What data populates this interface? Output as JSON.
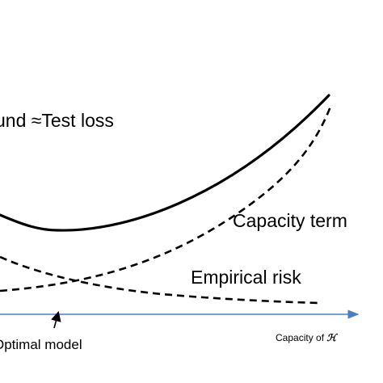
{
  "labels": {
    "test_loss": "und ≈Test loss",
    "capacity_term": "Capacity term",
    "empirical_risk": "Empirical risk",
    "optimal_model": "Optimal model",
    "x_axis_prefix": "Capacity of ",
    "x_axis_symbol": "ℋ"
  },
  "colors": {
    "axis": "#4a7fc4",
    "curves": "#000000"
  },
  "curves": [
    {
      "name": "test-loss-curve",
      "style": "solid"
    },
    {
      "name": "capacity-term-curve",
      "style": "dashed"
    },
    {
      "name": "empirical-risk-curve",
      "style": "dashed"
    }
  ]
}
